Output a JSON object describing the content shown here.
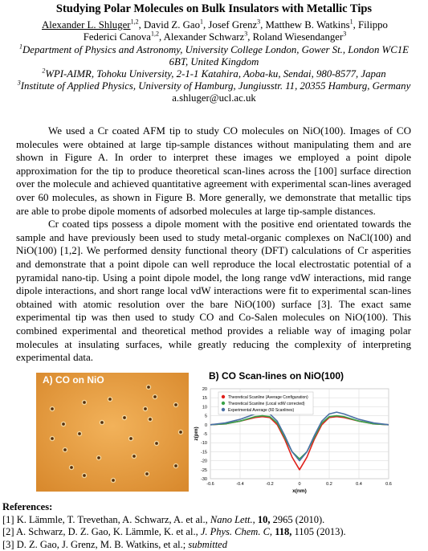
{
  "title": "Studying Polar Molecules on Bulk Insulators with Metallic Tips",
  "authors": [
    {
      "name": "Alexander L. Shluger",
      "sup": "1,2"
    },
    {
      "name": ", David Z. Gao",
      "sup": "1"
    },
    {
      "name": ", Josef Grenz",
      "sup": "3"
    },
    {
      "name": ", Matthew B. Watkins",
      "sup": "1"
    },
    {
      "name": ", Filippo Federici Canova",
      "sup": "1,2"
    },
    {
      "name": ", Alexander Schwarz",
      "sup": "3"
    },
    {
      "name": ", Roland Wiesendanger",
      "sup": "3"
    }
  ],
  "affiliations": [
    {
      "sup": "1",
      "text": "Department of Physics and Astronomy, University College London, Gower St., London WC1E 6BT, United Kingdom"
    },
    {
      "sup": "2",
      "text": "WPI-AIMR, Tohoku University, 2-1-1 Katahira, Aoba-ku, Sendai, 980-8577, Japan"
    },
    {
      "sup": "3",
      "text": "Institute of Applied Physics, University of Hamburg, Jungiusstr. 11, 20355 Hamburg, Germany"
    }
  ],
  "email": "a.shluger@ucl.ac.uk",
  "paragraphs": [
    "We used a Cr coated AFM tip to study CO molecules on NiO(100). Images of CO molecules were obtained at large tip-sample distances without manipulating them and are shown in Figure A. In order to interpret these images we employed a point dipole approximation for the tip to produce theoretical scan-lines across the [100] surface direction over the molecule and achieved quantitative agreement with experimental scan-lines averaged over 60 molecules, as shown in Figure B. More generally, we demonstrate that metallic tips are able to probe dipole moments of adsorbed molecules at large tip-sample distances.",
    "Cr coated tips possess a dipole moment with the positive end orientated towards the sample and have previously been used to study metal-organic complexes on NaCl(100) and NiO(100) [1,2]. We performed density functional theory (DFT) calculations of Cr asperities and demonstrate that a point dipole can well reproduce the local electrostatic potential of a pyramidal nano-tip. Using a point dipole model, the long range vdW interactions, mid range dipole interactions, and short range local vdW interactions were fit to experimental scan-lines obtained with atomic resolution over the bare NiO(100) surface [3]. The exact same experimental tip was then used to study CO and Co-Salen molecules on NiO(100). This combined experimental and theoretical method provides a reliable way of imaging polar molecules at insulating surfaces, while greatly reducing the complexity of interpreting experimental data."
  ],
  "figure_a": {
    "label": "A) CO on NiO"
  },
  "chart_data": {
    "type": "line",
    "title": "B) CO Scan-lines on NiO(100)",
    "x_label": "x(nm)",
    "y_label": "z(pm)",
    "x": [
      -0.6,
      -0.5,
      -0.4,
      -0.3,
      -0.25,
      -0.2,
      -0.15,
      -0.1,
      -0.05,
      0,
      0.05,
      0.1,
      0.15,
      0.2,
      0.25,
      0.3,
      0.4,
      0.5,
      0.6
    ],
    "series": [
      {
        "name": "Theoretical Scanline (Average Configuration)",
        "color": "#e0201b",
        "values": [
          0,
          0.5,
          2,
          4,
          4.5,
          4,
          0,
          -8,
          -18,
          -25,
          -18,
          -8,
          0,
          4,
          4.5,
          4,
          2,
          0.5,
          0
        ]
      },
      {
        "name": "Theoretical Scanline (Local vdW corrected)",
        "color": "#3aa34a",
        "values": [
          0,
          0.5,
          2,
          4.5,
          5,
          4.5,
          1,
          -7,
          -15,
          -19,
          -15,
          -7,
          1,
          4.5,
          5,
          4.5,
          2,
          0.5,
          0
        ]
      },
      {
        "name": "Experimental Average (60 Scanlines)",
        "color": "#4a6fa5",
        "values": [
          0,
          1,
          3,
          6,
          7,
          6,
          2,
          -6,
          -15,
          -20,
          -15,
          -6,
          2,
          6,
          7,
          6,
          3,
          1,
          0
        ]
      }
    ],
    "xlim": [
      -0.6,
      0.6
    ],
    "xticks": [
      -0.6,
      -0.4,
      -0.2,
      0,
      0.2,
      0.4,
      0.6
    ],
    "ylim": [
      -30,
      20
    ],
    "yticks": [
      -30,
      -25,
      -20,
      -15,
      -10,
      -5,
      0,
      5,
      10,
      15,
      20
    ],
    "grid": true,
    "legend": "upper left"
  },
  "references": {
    "heading": "References:",
    "items": [
      {
        "number": "[1]",
        "authors": "K. Lämmle, T. Trevethan, A. Schwarz, A. et al.,",
        "journal": "Nano Lett.,",
        "volume": "10,",
        "pages": "2965 (2010)."
      },
      {
        "number": "[2]",
        "authors": "A. Schwarz, D. Z. Gao, K. Lämmle, K. et al.,",
        "journal": "J. Phys. Chem. C,",
        "volume": "118,",
        "pages": "1105 (2013)."
      },
      {
        "number": "[3]",
        "authors": "D. Z. Gao, J. Grenz, M. B. Watkins, et al.;",
        "journal": "submitted"
      }
    ]
  }
}
